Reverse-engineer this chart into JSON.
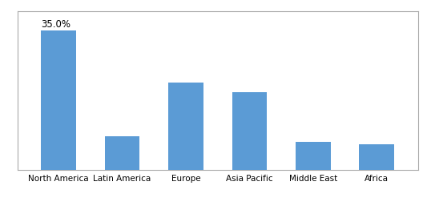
{
  "categories": [
    "North America",
    "Latin America",
    "Europe",
    "Asia Pacific",
    "Middle East",
    "Africa"
  ],
  "values": [
    35.0,
    8.5,
    22.0,
    19.5,
    7.0,
    6.5
  ],
  "bar_color": "#5b9bd5",
  "annotation_label": "35.0%",
  "annotation_index": 0,
  "ylim": [
    0,
    40
  ],
  "source_fontsize": 7.5,
  "annotation_fontsize": 8.5,
  "tick_fontsize": 7.5,
  "background_color": "#ffffff",
  "grid_color": "#c8c8c8",
  "bar_width": 0.55,
  "frame_color": "#aaaaaa"
}
